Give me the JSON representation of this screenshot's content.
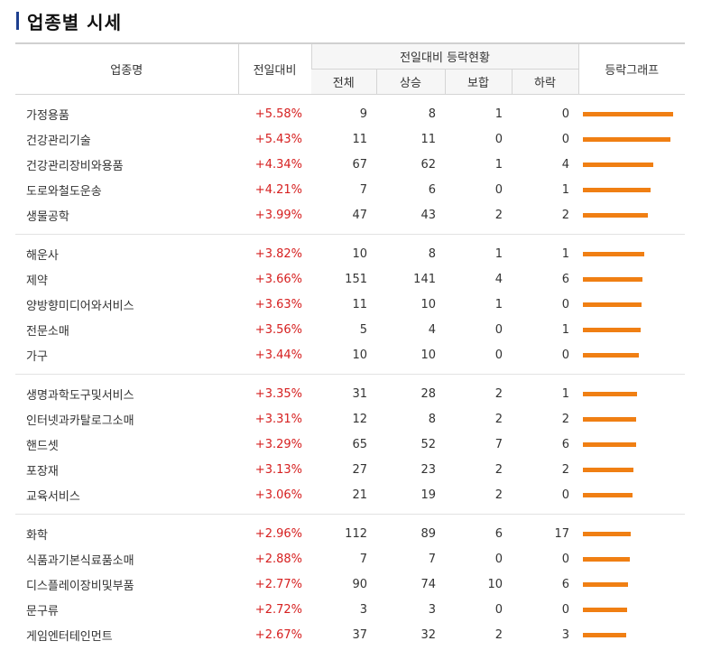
{
  "title": "업종별 시세",
  "headers": {
    "sector": "업종명",
    "change": "전일대비",
    "group": "전일대비 등락현황",
    "total": "전체",
    "up": "상승",
    "flat": "보합",
    "down": "하락",
    "graph": "등락그래프"
  },
  "colors": {
    "accent_bar": "#1d3f8f",
    "graph_bar": "#f07f13",
    "rise": "#d62020"
  },
  "groups": [
    [
      {
        "name": "가정용품",
        "rate": "+5.58%",
        "rate_value": 5.58,
        "total": "9",
        "up": "8",
        "flat": "1",
        "down": "0"
      },
      {
        "name": "건강관리기술",
        "rate": "+5.43%",
        "rate_value": 5.43,
        "total": "11",
        "up": "11",
        "flat": "0",
        "down": "0"
      },
      {
        "name": "건강관리장비와용품",
        "rate": "+4.34%",
        "rate_value": 4.34,
        "total": "67",
        "up": "62",
        "flat": "1",
        "down": "4"
      },
      {
        "name": "도로와철도운송",
        "rate": "+4.21%",
        "rate_value": 4.21,
        "total": "7",
        "up": "6",
        "flat": "0",
        "down": "1"
      },
      {
        "name": "생물공학",
        "rate": "+3.99%",
        "rate_value": 3.99,
        "total": "47",
        "up": "43",
        "flat": "2",
        "down": "2"
      }
    ],
    [
      {
        "name": "해운사",
        "rate": "+3.82%",
        "rate_value": 3.82,
        "total": "10",
        "up": "8",
        "flat": "1",
        "down": "1"
      },
      {
        "name": "제약",
        "rate": "+3.66%",
        "rate_value": 3.66,
        "total": "151",
        "up": "141",
        "flat": "4",
        "down": "6"
      },
      {
        "name": "양방향미디어와서비스",
        "rate": "+3.63%",
        "rate_value": 3.63,
        "total": "11",
        "up": "10",
        "flat": "1",
        "down": "0"
      },
      {
        "name": "전문소매",
        "rate": "+3.56%",
        "rate_value": 3.56,
        "total": "5",
        "up": "4",
        "flat": "0",
        "down": "1"
      },
      {
        "name": "가구",
        "rate": "+3.44%",
        "rate_value": 3.44,
        "total": "10",
        "up": "10",
        "flat": "0",
        "down": "0"
      }
    ],
    [
      {
        "name": "생명과학도구및서비스",
        "rate": "+3.35%",
        "rate_value": 3.35,
        "total": "31",
        "up": "28",
        "flat": "2",
        "down": "1"
      },
      {
        "name": "인터넷과카탈로그소매",
        "rate": "+3.31%",
        "rate_value": 3.31,
        "total": "12",
        "up": "8",
        "flat": "2",
        "down": "2"
      },
      {
        "name": "핸드셋",
        "rate": "+3.29%",
        "rate_value": 3.29,
        "total": "65",
        "up": "52",
        "flat": "7",
        "down": "6"
      },
      {
        "name": "포장재",
        "rate": "+3.13%",
        "rate_value": 3.13,
        "total": "27",
        "up": "23",
        "flat": "2",
        "down": "2"
      },
      {
        "name": "교육서비스",
        "rate": "+3.06%",
        "rate_value": 3.06,
        "total": "21",
        "up": "19",
        "flat": "2",
        "down": "0"
      }
    ],
    [
      {
        "name": "화학",
        "rate": "+2.96%",
        "rate_value": 2.96,
        "total": "112",
        "up": "89",
        "flat": "6",
        "down": "17"
      },
      {
        "name": "식품과기본식료품소매",
        "rate": "+2.88%",
        "rate_value": 2.88,
        "total": "7",
        "up": "7",
        "flat": "0",
        "down": "0"
      },
      {
        "name": "디스플레이장비및부품",
        "rate": "+2.77%",
        "rate_value": 2.77,
        "total": "90",
        "up": "74",
        "flat": "10",
        "down": "6"
      },
      {
        "name": "문구류",
        "rate": "+2.72%",
        "rate_value": 2.72,
        "total": "3",
        "up": "3",
        "flat": "0",
        "down": "0"
      },
      {
        "name": "게임엔터테인먼트",
        "rate": "+2.67%",
        "rate_value": 2.67,
        "total": "37",
        "up": "32",
        "flat": "2",
        "down": "3"
      }
    ]
  ]
}
